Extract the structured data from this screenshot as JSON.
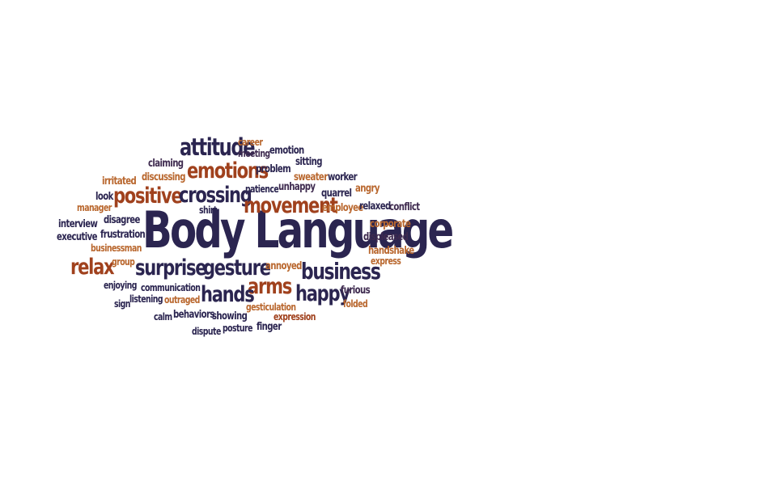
{
  "word_cloud": {
    "colors": {
      "navy": "#2b2550",
      "rust": "#a0411d",
      "tan": "#b9672e",
      "plum": "#3e2a4f"
    },
    "words": {
      "body_language": "Body Language",
      "attitude": "attitude",
      "career": "career",
      "meeting": "meeting",
      "emotion": "emotion",
      "claiming": "claiming",
      "emotions": "emotions",
      "problem": "problem",
      "sitting": "sitting",
      "irritated": "irritated",
      "discussing": "discussing",
      "sweater": "sweater",
      "worker": "worker",
      "look": "look",
      "positive": "positive",
      "crossing": "crossing",
      "patience": "patience",
      "unhappy": "unhappy",
      "quarrel": "quarrel",
      "angry": "angry",
      "manager": "manager",
      "shirt": "shirt",
      "movement": "movement",
      "employee": "employee",
      "relaxed": "relaxed",
      "conflict": "conflict",
      "interview": "interview",
      "disagree": "disagree",
      "corporate": "corporate",
      "executive": "executive",
      "frustration": "frustration",
      "displeased": "displeased",
      "businessman": "businessman",
      "handshake": "handshake",
      "relax": "relax",
      "group": "group",
      "express": "express",
      "surprise": "surprise",
      "gesture": "gesture",
      "annoyed": "annoyed",
      "business": "business",
      "enjoying": "enjoying",
      "communication": "communication",
      "arms": "arms",
      "hands": "hands",
      "happy": "happy",
      "furious": "furious",
      "sign": "sign",
      "listening": "listening",
      "outraged": "outraged",
      "folded": "folded",
      "gesticulation": "gesticulation",
      "calm": "calm",
      "behaviors": "behaviors",
      "showing": "showing",
      "expression": "expression",
      "dispute": "dispute",
      "posture": "posture",
      "finger": "finger"
    }
  }
}
